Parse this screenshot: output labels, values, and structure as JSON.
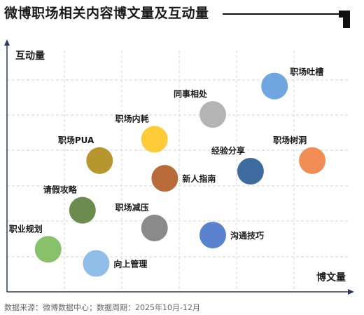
{
  "title": "微博职场相关内容博文量及互动量",
  "footer": "数据来源：微博数据中心；数据周期：2025年10月-12月",
  "chart_data": {
    "type": "scatter",
    "title": "微博职场相关内容博文量及互动量",
    "xlabel": "博文量",
    "ylabel": "互动量",
    "xlim": [
      0,
      10
    ],
    "ylim": [
      0,
      7
    ],
    "grid": true,
    "points": [
      {
        "label": "职场吐槽",
        "x": 7.8,
        "y": 5.8,
        "color": "#6fa6e0",
        "label_pos": "top-right"
      },
      {
        "label": "同事相处",
        "x": 6.0,
        "y": 5.0,
        "color": "#b4b4b4",
        "label_pos": "top-left"
      },
      {
        "label": "职场内耗",
        "x": 4.3,
        "y": 4.3,
        "color": "#fdcb38",
        "label_pos": "top-left"
      },
      {
        "label": "职场树洞",
        "x": 8.9,
        "y": 3.7,
        "color": "#f18c55",
        "label_pos": "top-left"
      },
      {
        "label": "职场PUA",
        "x": 2.7,
        "y": 3.7,
        "color": "#b8962e",
        "label_pos": "top-left"
      },
      {
        "label": "经验分享",
        "x": 7.1,
        "y": 3.4,
        "color": "#3f6c9e",
        "label_pos": "top-left"
      },
      {
        "label": "新人指南",
        "x": 4.6,
        "y": 3.2,
        "color": "#b86a38",
        "label_pos": "right"
      },
      {
        "label": "请假攻略",
        "x": 2.2,
        "y": 2.3,
        "color": "#6b8c4e",
        "label_pos": "top-left"
      },
      {
        "label": "职场减压",
        "x": 4.3,
        "y": 1.8,
        "color": "#8a8a8a",
        "label_pos": "top-left"
      },
      {
        "label": "沟通技巧",
        "x": 6.0,
        "y": 1.6,
        "color": "#5b82cf",
        "label_pos": "right"
      },
      {
        "label": "职业规划",
        "x": 1.2,
        "y": 1.2,
        "color": "#88c06c",
        "label_pos": "top-left"
      },
      {
        "label": "向上管理",
        "x": 2.6,
        "y": 0.8,
        "color": "#90bde8",
        "label_pos": "right"
      }
    ]
  }
}
